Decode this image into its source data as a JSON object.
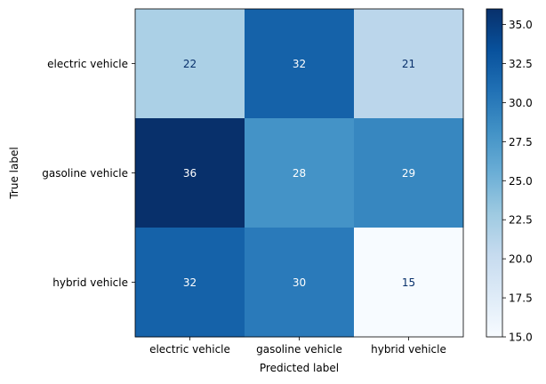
{
  "chart_data": {
    "type": "heatmap",
    "xlabel": "Predicted label",
    "ylabel": "True label",
    "x_categories": [
      "electric vehicle",
      "gasoline vehicle",
      "hybrid vehicle"
    ],
    "y_categories": [
      "electric vehicle",
      "gasoline vehicle",
      "hybrid vehicle"
    ],
    "values": [
      [
        22,
        32,
        21
      ],
      [
        36,
        28,
        29
      ],
      [
        32,
        30,
        15
      ]
    ],
    "colormap": "Blues",
    "colorbar": {
      "range": [
        15,
        36
      ],
      "ticks": [
        "15.0",
        "17.5",
        "20.0",
        "22.5",
        "25.0",
        "27.5",
        "30.0",
        "32.5",
        "35.0"
      ]
    }
  }
}
